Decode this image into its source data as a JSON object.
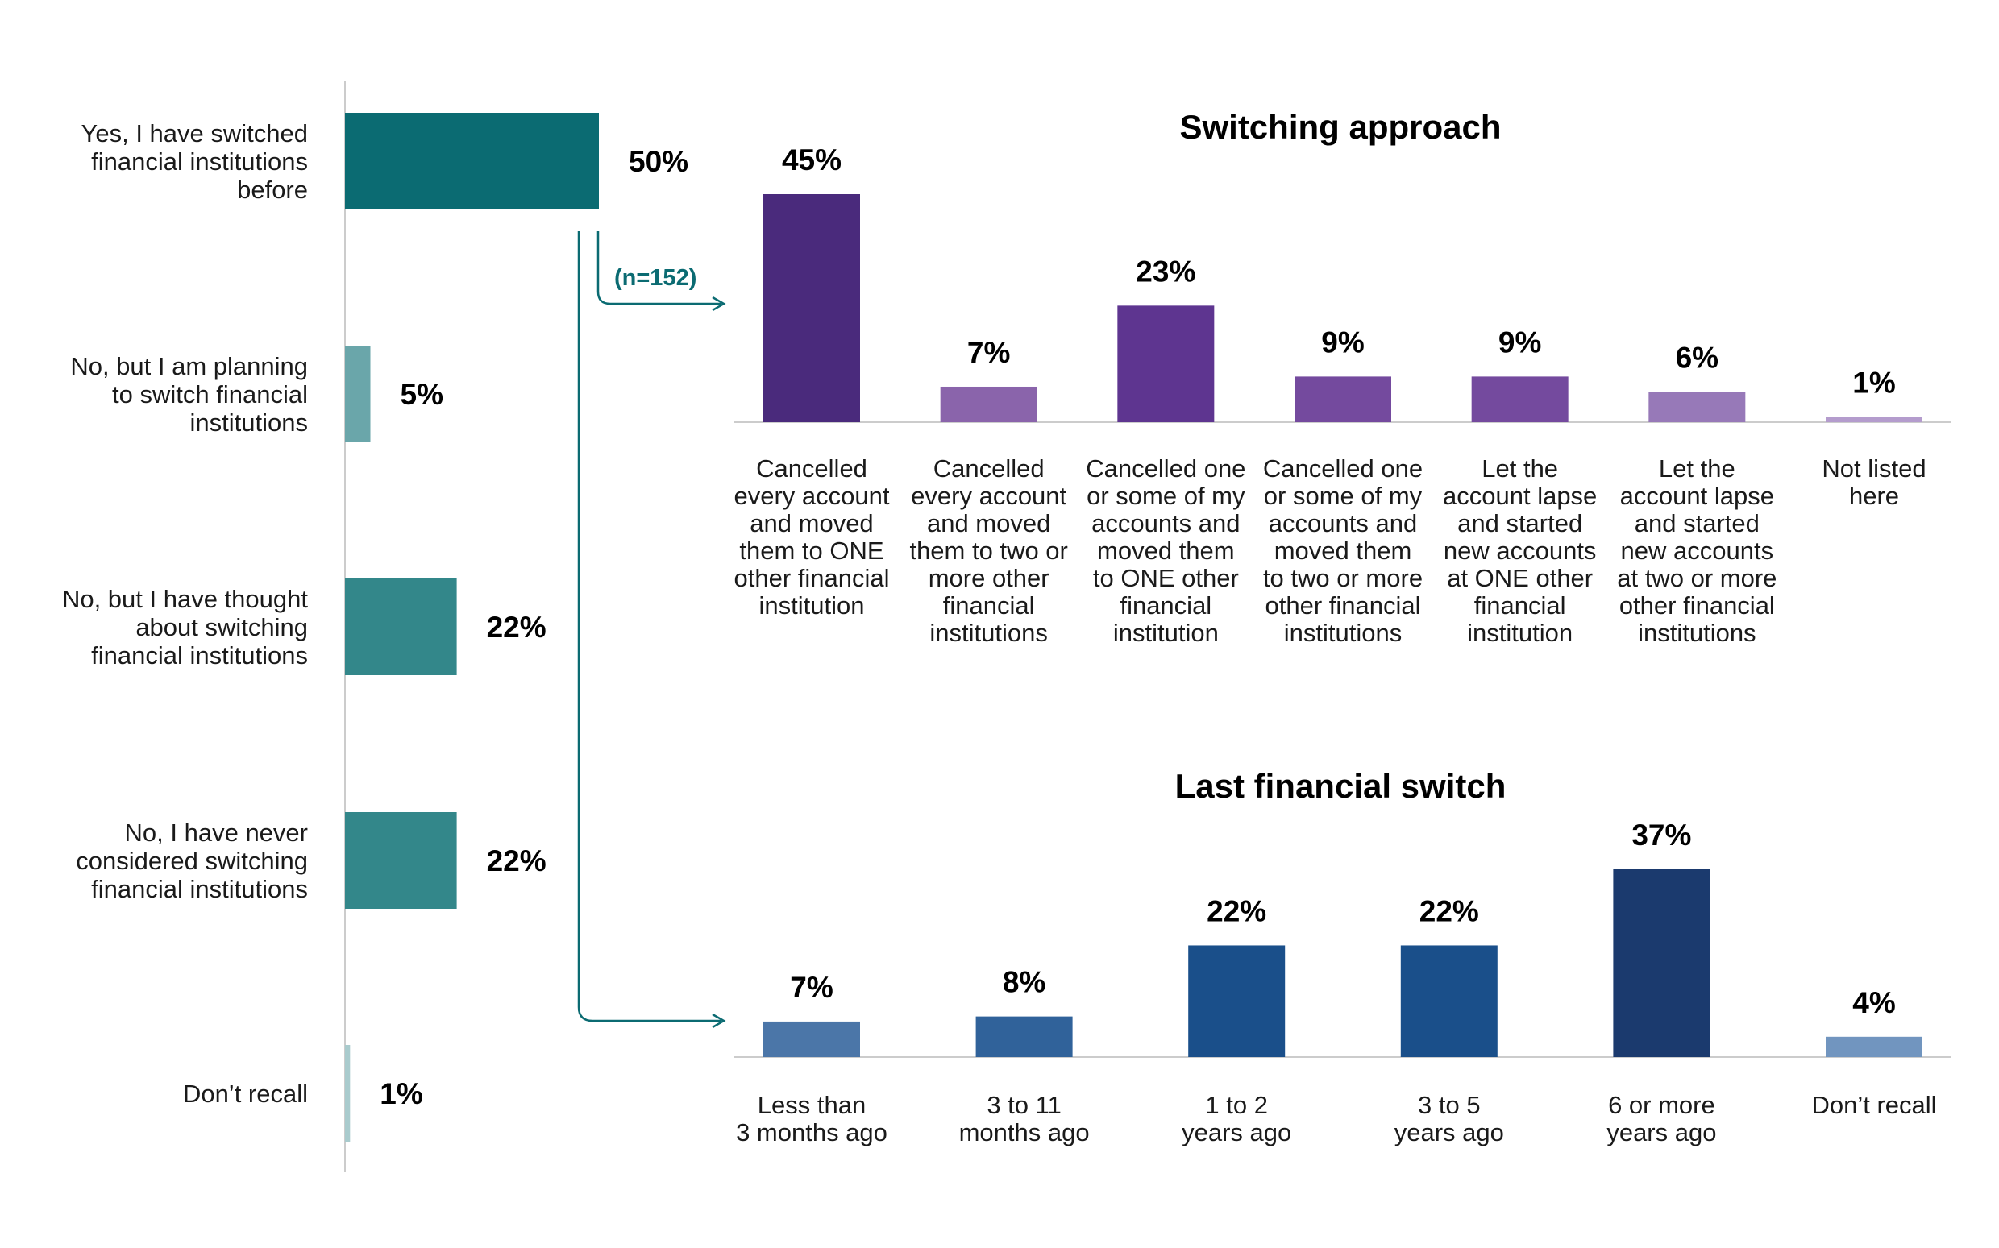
{
  "chart_data": [
    {
      "type": "bar",
      "orientation": "horizontal",
      "title": "",
      "categories": [
        [
          "Yes, I have switched",
          "financial institutions",
          "before"
        ],
        [
          "No, but I am planning",
          "to switch financial",
          "institutions"
        ],
        [
          "No, but I have thought",
          "about switching",
          "financial institutions"
        ],
        [
          "No, I have never",
          "considered switching",
          "financial institutions"
        ],
        [
          "Don’t recall"
        ]
      ],
      "values": [
        50,
        5,
        22,
        22,
        1
      ],
      "value_labels": [
        "50%",
        "5%",
        "22%",
        "22%",
        "1%"
      ],
      "colors": [
        "#0b6b72",
        "#6aa6aa",
        "#33878a",
        "#33878a",
        "#a9cbcd"
      ],
      "xlim": [
        0,
        50
      ]
    },
    {
      "type": "bar",
      "title": "Switching approach",
      "annotation": "(n=152)",
      "categories": [
        [
          "Cancelled",
          "every account",
          "and moved",
          "them to ONE",
          "other financial",
          "institution"
        ],
        [
          "Cancelled",
          "every account",
          "and moved",
          "them to two or",
          "more other",
          "financial",
          "institutions"
        ],
        [
          "Cancelled one",
          "or some of my",
          "accounts and",
          "moved them",
          "to ONE other",
          "financial",
          "institution"
        ],
        [
          "Cancelled one",
          "or some of my",
          "accounts and",
          "moved them",
          "to two or more",
          "other financial",
          "institutions"
        ],
        [
          "Let the",
          "account lapse",
          "and started",
          "new accounts",
          "at ONE other",
          "financial",
          "institution"
        ],
        [
          "Let the",
          "account lapse",
          "and started",
          "new accounts",
          "at two or more",
          "other financial",
          "institutions"
        ],
        [
          "Not listed",
          "here"
        ]
      ],
      "values": [
        45,
        7,
        23,
        9,
        9,
        6,
        1
      ],
      "value_labels": [
        "45%",
        "7%",
        "23%",
        "9%",
        "9%",
        "6%",
        "1%"
      ],
      "colors": [
        "#4a2a7c",
        "#8a64ab",
        "#5e3590",
        "#744a9e",
        "#744a9e",
        "#9779b8",
        "#b49ccd"
      ],
      "ylim": [
        0,
        45
      ]
    },
    {
      "type": "bar",
      "title": "Last financial switch",
      "categories": [
        [
          "Less than",
          "3 months ago"
        ],
        [
          "3 to 11",
          "months ago"
        ],
        [
          "1 to 2",
          "years ago"
        ],
        [
          "3 to 5",
          "years ago"
        ],
        [
          "6 or more",
          "years ago"
        ],
        [
          "Don’t recall"
        ]
      ],
      "values": [
        7,
        8,
        22,
        22,
        37,
        4
      ],
      "value_labels": [
        "7%",
        "8%",
        "22%",
        "22%",
        "37%",
        "4%"
      ],
      "colors": [
        "#4b76a8",
        "#30629a",
        "#1a4f8a",
        "#1a4f8a",
        "#1b3a6e",
        "#7195bf"
      ],
      "ylim": [
        0,
        37
      ]
    }
  ]
}
